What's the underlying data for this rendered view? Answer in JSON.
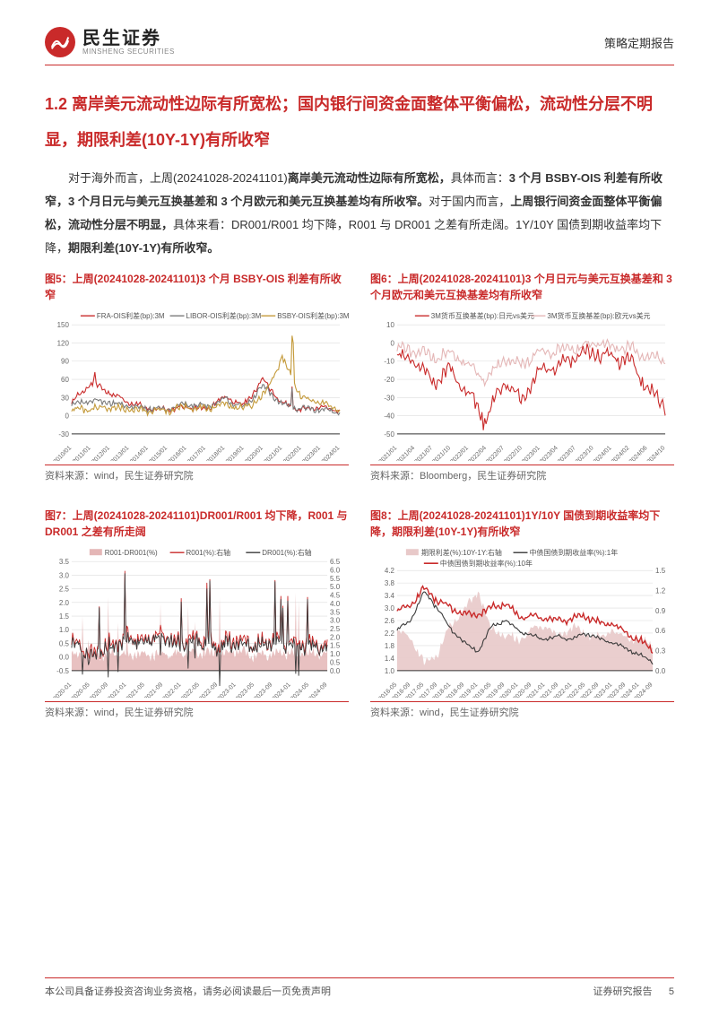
{
  "header": {
    "logo_cn": "民生证券",
    "logo_en": "MINSHENG SECURITIES",
    "doc_type": "策略定期报告"
  },
  "section": {
    "title": "1.2 离岸美元流动性边际有所宽松；国内银行间资金面整体平衡偏松，流动性分层不明显，期限利差(10Y-1Y)有所收窄"
  },
  "paragraph": {
    "p1_a": "对于海外而言，上周(20241028-20241101)",
    "p1_b": "离岸美元流动性边际有所宽松，",
    "p1_c": "具体而言：",
    "p1_d": "3 个月 BSBY-OIS 利差有所收窄，3 个月日元与美元互换基差和 3 个月欧元和美元互换基差均有所收窄。",
    "p1_e": "对于国内而言，",
    "p1_f": "上周银行间资金面整体平衡偏松，流动性分层不明显，",
    "p1_g": "具体来看：DR001/R001 均下降，R001 与 DR001 之差有所走阔。1Y/10Y 国债到期收益率均下降，",
    "p1_h": "期限利差(10Y-1Y)有所收窄。"
  },
  "charts": {
    "c5": {
      "title": "图5：上周(20241028-20241101)3 个月 BSBY-OIS 利差有所收窄",
      "source": "资料来源：wind，民生证券研究院",
      "legend": [
        "FRA-OIS利差(bp):3M",
        "LIBOR-OIS利差(bp):3M",
        "BSBY-OIS利差(bp):3M"
      ],
      "legend_colors": [
        "#c92a2a",
        "#7a7a7a",
        "#c49a3a"
      ],
      "y_ticks": [
        "-30",
        "0",
        "30",
        "60",
        "90",
        "120",
        "150"
      ],
      "ylim": [
        -30,
        150
      ],
      "x_ticks": [
        "2010/01",
        "2011/01",
        "2012/01",
        "2013/01",
        "2014/01",
        "2015/01",
        "2016/01",
        "2017/01",
        "2018/01",
        "2019/01",
        "2020/01",
        "2021/01",
        "2022/01",
        "2023/01",
        "2024/01"
      ],
      "grid_color": "#dddddd",
      "bg": "#ffffff"
    },
    "c6": {
      "title": "图6：上周(20241028-20241101)3 个月日元与美元互换基差和 3 个月欧元和美元互换基差均有所收窄",
      "source": "资料来源：Bloomberg，民生证券研究院",
      "legend": [
        "3M货币互换基差(bp):日元vs美元",
        "3M货币互换基差(bp):欧元vs美元"
      ],
      "legend_colors": [
        "#c92a2a",
        "#e4b6b6"
      ],
      "y_ticks": [
        "-50",
        "-40",
        "-30",
        "-20",
        "-10",
        "0",
        "10"
      ],
      "ylim": [
        -50,
        10
      ],
      "x_ticks": [
        "2021/01",
        "2021/04",
        "2021/07",
        "2021/10",
        "2022/01",
        "2022/04",
        "2022/07",
        "2022/10",
        "2023/01",
        "2023/04",
        "2023/07",
        "2023/10",
        "2024/01",
        "2024/02",
        "2024/06",
        "2024/10"
      ],
      "grid_color": "#dddddd",
      "bg": "#ffffff"
    },
    "c7": {
      "title": "图7：上周(20241028-20241101)DR001/R001 均下降，R001 与 DR001 之差有所走阔",
      "source": "资料来源：wind，民生证券研究院",
      "legend": [
        "R001-DR001(%)",
        "R001(%):右轴",
        "DR001(%):右轴"
      ],
      "legend_colors": [
        "#e4b6b6",
        "#c92a2a",
        "#3a3a3a"
      ],
      "y_ticks_left": [
        "-0.5",
        "0.0",
        "0.5",
        "1.0",
        "1.5",
        "2.0",
        "2.5",
        "3.0",
        "3.5"
      ],
      "ylim_left": [
        -0.5,
        3.5
      ],
      "y_ticks_right": [
        "0.0",
        "0.5",
        "1.0",
        "1.5",
        "2.0",
        "2.5",
        "3.0",
        "3.5",
        "4.0",
        "4.5",
        "5.0",
        "5.5",
        "6.0",
        "6.5"
      ],
      "ylim_right": [
        0.0,
        6.5
      ],
      "x_ticks": [
        "2020-01",
        "2020-05",
        "2020-09",
        "2021-01",
        "2021-05",
        "2021-09",
        "2022-01",
        "2022-05",
        "2022-09",
        "2023-01",
        "2023-05",
        "2023-09",
        "2024-01",
        "2024-05",
        "2024-09"
      ],
      "grid_color": "#dddddd",
      "bg": "#ffffff"
    },
    "c8": {
      "title": "图8：上周(20241028-20241101)1Y/10Y 国债到期收益率均下降，期限利差(10Y-1Y)有所收窄",
      "source": "资料来源：wind，民生证券研究院",
      "legend": [
        "期限利差(%):10Y-1Y:右轴",
        "中债国债到期收益率(%):1年",
        "中债国债到期收益率(%):10年"
      ],
      "legend_colors": [
        "#e8c9c9",
        "#3a3a3a",
        "#c92a2a"
      ],
      "y_ticks_left": [
        "1.0",
        "1.4",
        "1.8",
        "2.2",
        "2.6",
        "3.0",
        "3.4",
        "3.8",
        "4.2"
      ],
      "ylim_left": [
        1.0,
        4.2
      ],
      "y_ticks_right": [
        "0.0",
        "0.3",
        "0.6",
        "0.9",
        "1.2",
        "1.5"
      ],
      "ylim_right": [
        0.0,
        1.5
      ],
      "x_ticks": [
        "2016-05",
        "2016-09",
        "2017-05",
        "2017-09",
        "2018-01",
        "2018-09",
        "2019-01",
        "2019-05",
        "2019-09",
        "2020-01",
        "2020-09",
        "2021-01",
        "2021-09",
        "2022-01",
        "2022-05",
        "2022-09",
        "2023-01",
        "2023-09",
        "2024-01",
        "2024-09"
      ],
      "grid_color": "#dddddd",
      "bg": "#ffffff"
    }
  },
  "footer": {
    "disclaimer": "本公司具备证券投资咨询业务资格，请务必阅读最后一页免责声明",
    "report_label": "证券研究报告",
    "page": "5"
  }
}
